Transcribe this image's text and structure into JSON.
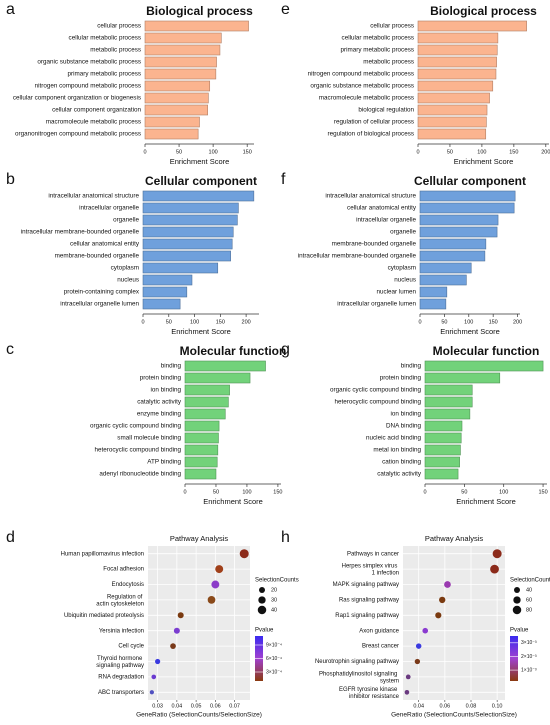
{
  "chart_data": [
    {
      "type": "barh",
      "label": "a",
      "title": "Biological process",
      "xlabel": "Enrichment Score",
      "categories": [
        "cellular process",
        "cellular metabolic process",
        "metabolic process",
        "organic substance metabolic process",
        "primary metabolic process",
        "nitrogen compound metabolic process",
        "cellular component organization or biogenesis",
        "cellular component organization",
        "macromolecule metabolic process",
        "organonitrogen compound metabolic process"
      ],
      "values": [
        152,
        112,
        110,
        105,
        104,
        95,
        93,
        92,
        80,
        78
      ],
      "color": "#fbb48f",
      "xlim": [
        0,
        160
      ],
      "xticks": [
        0,
        50,
        100,
        150
      ]
    },
    {
      "type": "barh",
      "label": "b",
      "title": "Cellular component",
      "xlabel": "Enrichment Score",
      "categories": [
        "intracellular anatomical structure",
        "intracellular organelle",
        "organelle",
        "intracellular membrane-bounded organelle",
        "cellular anatomical entity",
        "membrane-bounded organelle",
        "cytoplasm",
        "nucleus",
        "protein-containing complex",
        "intracellular organelle lumen"
      ],
      "values": [
        215,
        185,
        183,
        175,
        173,
        170,
        145,
        95,
        85,
        72
      ],
      "color": "#6fa0dc",
      "xlim": [
        0,
        225
      ],
      "xticks": [
        0,
        50,
        100,
        150,
        200
      ]
    },
    {
      "type": "barh",
      "label": "c",
      "title": "Molecular function",
      "xlabel": "Enrichment Score",
      "categories": [
        "binding",
        "protein binding",
        "ion binding",
        "catalytic activity",
        "enzyme binding",
        "organic cyclic compound binding",
        "small molecule binding",
        "heterocyclic compound binding",
        "ATP binding",
        "adenyl ribonucleotide binding"
      ],
      "values": [
        130,
        105,
        72,
        70,
        65,
        55,
        54,
        53,
        52,
        50
      ],
      "color": "#72d27a",
      "xlim": [
        0,
        155
      ],
      "xticks": [
        0,
        50,
        100,
        150
      ]
    },
    {
      "type": "dot",
      "label": "d",
      "title": "Pathway Analysis",
      "xlabel": "GeneRatio (SelectionCounts/SelectionSize)",
      "categories": [
        "Human papillomavirus infection",
        "Focal adhesion",
        "Endocytosis",
        "Regulation of actin cytoskeleton",
        "Ubiquitin mediated proteolysis",
        "Yersinia infection",
        "Cell cycle",
        "Thyroid hormone signaling pathway",
        "RNA degradation",
        "ABC transporters"
      ],
      "x": [
        0.075,
        0.062,
        0.06,
        0.058,
        0.042,
        0.04,
        0.038,
        0.03,
        0.028,
        0.027
      ],
      "sizes": [
        45,
        35,
        35,
        33,
        20,
        20,
        18,
        15,
        12,
        10
      ],
      "colors": [
        "#8b2a1a",
        "#a0401a",
        "#8b3cc8",
        "#8a4a1a",
        "#7a3a10",
        "#7b3dd0",
        "#7a3a1a",
        "#3b3be0",
        "#6a3ad0",
        "#5050c0"
      ],
      "xlim": [
        0.025,
        0.078
      ],
      "xticks": [
        0.03,
        0.04,
        0.05,
        0.06,
        0.07
      ],
      "size_legend": {
        "title": "SelectionCounts",
        "values": [
          20,
          30,
          40
        ]
      },
      "color_legend": {
        "title": "Pvalue",
        "lim": [
          0.0001,
          0.0011
        ],
        "colors": [
          "#3a2af0",
          "#a040d0",
          "#8b3a10"
        ],
        "ticks": [
          {
            "value": 0.0009,
            "label": "9×10⁻⁴"
          },
          {
            "value": 0.0006,
            "label": "6×10⁻⁴"
          },
          {
            "value": 0.0003,
            "label": "3×10⁻⁴"
          }
        ]
      }
    },
    {
      "type": "barh",
      "label": "e",
      "title": "Biological process",
      "xlabel": "Enrichment Score",
      "categories": [
        "cellular process",
        "cellular metabolic process",
        "primary metabolic process",
        "metabolic process",
        "nitrogen compound metabolic process",
        "organic substance metabolic process",
        "macromolecule metabolic process",
        "biological regulation",
        "regulation of cellular process",
        "regulation of biological process"
      ],
      "values": [
        170,
        125,
        124,
        123,
        122,
        117,
        112,
        108,
        107,
        106
      ],
      "color": "#fbb48f",
      "xlim": [
        0,
        205
      ],
      "xticks": [
        0,
        50,
        100,
        150,
        200
      ]
    },
    {
      "type": "barh",
      "label": "f",
      "title": "Cellular component",
      "xlabel": "Enrichment Score",
      "categories": [
        "intracellular anatomical structure",
        "cellular anatomical entity",
        "intracellular organelle",
        "organelle",
        "membrane-bounded organelle",
        "intracellular membrane-bounded organelle",
        "cytoplasm",
        "nucleus",
        "nuclear lumen",
        "intracellular organelle lumen"
      ],
      "values": [
        195,
        193,
        160,
        158,
        135,
        133,
        105,
        95,
        55,
        53
      ],
      "color": "#6fa0dc",
      "xlim": [
        0,
        205
      ],
      "xticks": [
        0,
        50,
        100,
        150,
        200
      ]
    },
    {
      "type": "barh",
      "label": "g",
      "title": "Molecular function",
      "xlabel": "Enrichment Score",
      "categories": [
        "binding",
        "protein binding",
        "organic cyclic compound binding",
        "heterocyclic compound binding",
        "ion binding",
        "DNA binding",
        "nucleic acid binding",
        "metal ion binding",
        "cation binding",
        "catalytic activity"
      ],
      "values": [
        150,
        95,
        60,
        60,
        57,
        47,
        46,
        45,
        44,
        42
      ],
      "color": "#72d27a",
      "xlim": [
        0,
        155
      ],
      "xticks": [
        0,
        50,
        100,
        150
      ]
    },
    {
      "type": "dot",
      "label": "h",
      "title": "Pathway Analysis",
      "xlabel": "GeneRatio (SelectionCounts/SelectionSize)",
      "categories": [
        "Pathways in cancer",
        "Herpes simplex virus 1 infection",
        "MAPK signaling pathway",
        "Ras signaling pathway",
        "Rap1 signaling pathway",
        "Axon guidance",
        "Breast cancer",
        "Neurotrophin signaling pathway",
        "Phosphatidylinositol signaling system",
        "EGFR tyrosine kinase inhibitor resistance"
      ],
      "x": [
        0.1,
        0.098,
        0.062,
        0.058,
        0.055,
        0.045,
        0.04,
        0.039,
        0.032,
        0.031
      ],
      "sizes": [
        90,
        85,
        50,
        45,
        42,
        35,
        33,
        32,
        25,
        24
      ],
      "colors": [
        "#8b2a1a",
        "#8b2a1a",
        "#9a3ab0",
        "#7a3a10",
        "#7a3a10",
        "#8a3ad0",
        "#3b3be0",
        "#7a3a1a",
        "#6a3a80",
        "#6a3a80"
      ],
      "xlim": [
        0.028,
        0.106
      ],
      "xticks": [
        0.04,
        0.06,
        0.08,
        {
          "value": 0.1,
          "label": "0.10"
        }
      ],
      "size_legend": {
        "title": "SelectionCounts",
        "values": [
          40,
          60,
          80
        ]
      },
      "color_legend": {
        "title": "Pvalue",
        "lim": [
          0.0002,
          0.0035
        ],
        "colors": [
          "#3a2af0",
          "#a040d0",
          "#8b3a10"
        ],
        "ticks": [
          {
            "value": 0.003,
            "label": "3×10⁻³"
          },
          {
            "value": 0.002,
            "label": "2×10⁻³"
          },
          {
            "value": 0.001,
            "label": "1×10⁻³"
          }
        ]
      }
    }
  ]
}
